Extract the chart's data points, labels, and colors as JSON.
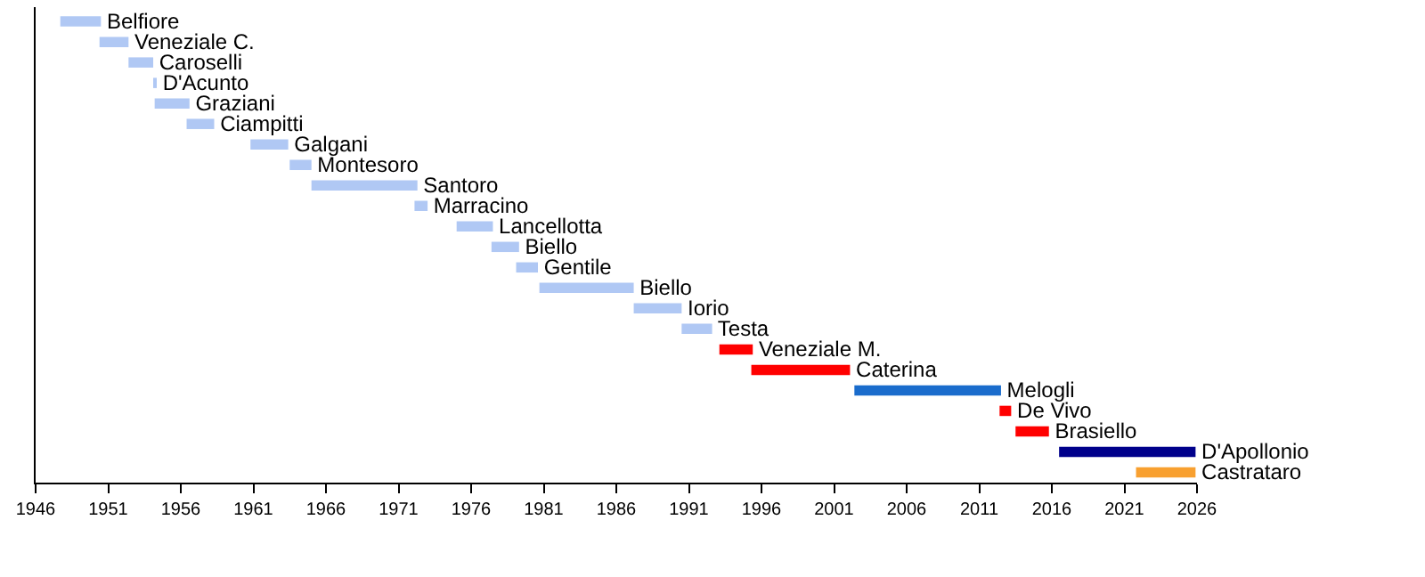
{
  "chart_data": {
    "type": "bar",
    "orientation": "horizontal",
    "tick_labels": "x",
    "legend": false,
    "categories": [
      "Belfiore",
      "Veneziale C.",
      "Caroselli",
      "D'Acunto",
      "Graziani",
      "Ciampitti",
      "Galgani",
      "Montesoro",
      "Santoro",
      "Marracino",
      "Lancellotta",
      "Biello",
      "Gentile",
      "Biello",
      "Iorio",
      "Testa",
      "Veneziale M.",
      "Caterina",
      "Melogli",
      "De Vivo",
      "Brasiello",
      "D'Apollonio",
      "Castrataro"
    ],
    "base": [
      1947.7,
      1950.4,
      1952.4,
      1954.1,
      1954.2,
      1956.4,
      1960.8,
      1963.5,
      1965.0,
      1972.1,
      1975.0,
      1977.4,
      1979.1,
      1980.7,
      1987.2,
      1990.5,
      1993.1,
      1995.3,
      2002.4,
      2012.4,
      2013.5,
      2016.5,
      2021.8
    ],
    "values": [
      2.8,
      2.0,
      1.7,
      0.2,
      2.4,
      1.9,
      2.6,
      1.5,
      7.3,
      0.9,
      2.5,
      1.9,
      1.5,
      6.5,
      3.3,
      2.1,
      2.3,
      6.8,
      10.1,
      0.8,
      2.3,
      9.4,
      4.1
    ],
    "colors": [
      "#b0c8f4",
      "#b0c8f4",
      "#b0c8f4",
      "#b0c8f4",
      "#b0c8f4",
      "#b0c8f4",
      "#b0c8f4",
      "#b0c8f4",
      "#b0c8f4",
      "#b0c8f4",
      "#b0c8f4",
      "#b0c8f4",
      "#b0c8f4",
      "#b0c8f4",
      "#b0c8f4",
      "#b0c8f4",
      "#ff0000",
      "#ff0000",
      "#1a6ccc",
      "#ff0000",
      "#ff0000",
      "#00008b",
      "#f8a030"
    ],
    "xlim": [
      1946,
      2026
    ],
    "xticks": [
      1946,
      1951,
      1956,
      1961,
      1966,
      1971,
      1976,
      1981,
      1986,
      1991,
      1996,
      2001,
      2006,
      2011,
      2016,
      2021,
      2026
    ]
  }
}
